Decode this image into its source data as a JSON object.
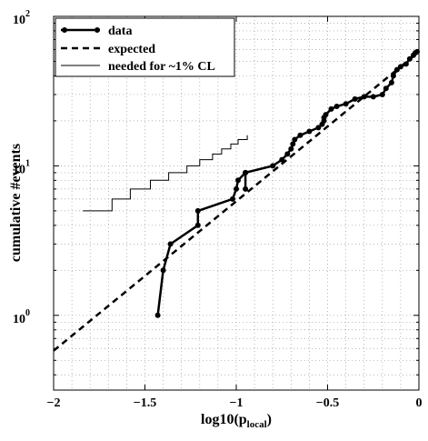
{
  "chart_data": {
    "type": "line",
    "xlabel_main": "log10(p",
    "xlabel_sub": "local",
    "xlabel_close": ")",
    "ylabel": "cumulative #events",
    "xlim": [
      -2,
      0
    ],
    "ylim_log10": [
      -0.5,
      2
    ],
    "y_scale": "log",
    "grid": true,
    "legend_position": "top-left",
    "x_ticks": [
      {
        "value": -2,
        "label": "−2"
      },
      {
        "value": -1.5,
        "label": "−1.5"
      },
      {
        "value": -1,
        "label": "−1"
      },
      {
        "value": -0.5,
        "label": "−0.5"
      },
      {
        "value": 0,
        "label": "0"
      }
    ],
    "y_ticks": [
      {
        "exp": 0,
        "base": "10",
        "sup": "0"
      },
      {
        "exp": 1,
        "base": "10",
        "sup": "1"
      },
      {
        "exp": 2,
        "base": "10",
        "sup": "2"
      }
    ],
    "series": [
      {
        "name": "data",
        "style": "solid-markers",
        "color": "#000000",
        "points": [
          [
            -1.43,
            1
          ],
          [
            -1.4,
            2
          ],
          [
            -1.36,
            3
          ],
          [
            -1.21,
            4
          ],
          [
            -1.21,
            5
          ],
          [
            -1.02,
            6
          ],
          [
            -1.0,
            7
          ],
          [
            -0.99,
            8
          ],
          [
            -0.95,
            9
          ],
          [
            -0.95,
            7
          ],
          [
            -0.95,
            9
          ],
          [
            -0.8,
            10
          ],
          [
            -0.75,
            11
          ],
          [
            -0.72,
            12
          ],
          [
            -0.7,
            13
          ],
          [
            -0.69,
            14
          ],
          [
            -0.68,
            15
          ],
          [
            -0.65,
            16
          ],
          [
            -0.6,
            17
          ],
          [
            -0.55,
            18
          ],
          [
            -0.53,
            19
          ],
          [
            -0.52,
            20
          ],
          [
            -0.52,
            21
          ],
          [
            -0.51,
            22
          ],
          [
            -0.48,
            24
          ],
          [
            -0.45,
            25
          ],
          [
            -0.4,
            26
          ],
          [
            -0.35,
            28
          ],
          [
            -0.3,
            29
          ],
          [
            -0.25,
            29
          ],
          [
            -0.2,
            30
          ],
          [
            -0.18,
            33
          ],
          [
            -0.15,
            36
          ],
          [
            -0.14,
            40
          ],
          [
            -0.12,
            44
          ],
          [
            -0.1,
            46
          ],
          [
            -0.07,
            48
          ],
          [
            -0.05,
            52
          ],
          [
            -0.03,
            55
          ],
          [
            -0.02,
            57
          ],
          [
            -0.01,
            58
          ]
        ]
      },
      {
        "name": "expected",
        "style": "dashed",
        "color": "#000000",
        "points": [
          [
            -2,
            0.58
          ],
          [
            0,
            58
          ]
        ]
      },
      {
        "name": "needed for ~1% CL",
        "style": "thin-step",
        "color": "#000000",
        "points": [
          [
            -1.84,
            5
          ],
          [
            -1.68,
            5
          ],
          [
            -1.68,
            6
          ],
          [
            -1.58,
            6
          ],
          [
            -1.58,
            7
          ],
          [
            -1.47,
            7
          ],
          [
            -1.47,
            8
          ],
          [
            -1.37,
            8
          ],
          [
            -1.37,
            9
          ],
          [
            -1.27,
            9
          ],
          [
            -1.27,
            10
          ],
          [
            -1.2,
            10
          ],
          [
            -1.2,
            11
          ],
          [
            -1.13,
            11
          ],
          [
            -1.13,
            12
          ],
          [
            -1.08,
            12
          ],
          [
            -1.08,
            13
          ],
          [
            -1.03,
            13
          ],
          [
            -1.03,
            14
          ],
          [
            -0.99,
            14
          ],
          [
            -0.99,
            15
          ],
          [
            -0.94,
            15
          ],
          [
            -0.94,
            16
          ]
        ]
      }
    ]
  }
}
